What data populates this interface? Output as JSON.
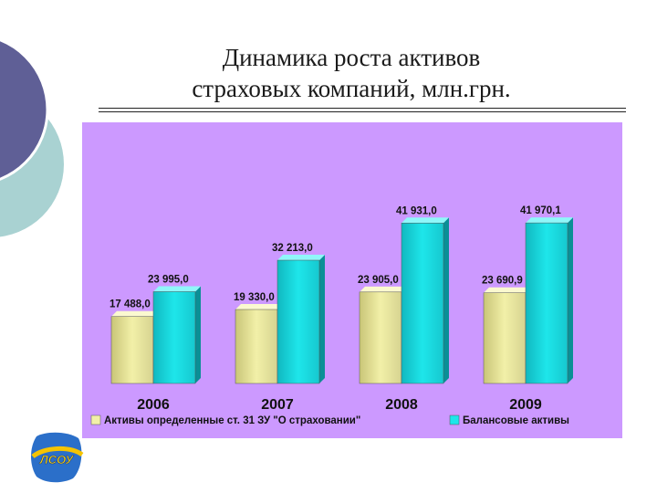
{
  "slide": {
    "title_line1": "Динамика роста активов",
    "title_line2": "страховых компаний, млн.грн."
  },
  "logo": {
    "text": "ЛСОУ"
  },
  "colors": {
    "plot_background": "#cc99ff",
    "series1": "#f2f0a8",
    "series2": "#1ee6ea",
    "deco_dark": "#5f5f96",
    "deco_light": "#a9d2d2"
  },
  "chart_data": {
    "type": "bar",
    "categories": [
      "2006",
      "2007",
      "2008",
      "2009"
    ],
    "series": [
      {
        "name": "Активы определенные ст. 31 ЗУ \"О страховании\"",
        "values": [
          17488.0,
          19330.0,
          23905.0,
          23690.9
        ],
        "labels": [
          "17 488,0",
          "19 330,0",
          "23 905,0",
          "23 690,9"
        ]
      },
      {
        "name": "Балансовые активы",
        "values": [
          23995.0,
          32213.0,
          41931.0,
          41970.1
        ],
        "labels": [
          "23 995,0",
          "32 213,0",
          "41 931,0",
          "41 970,1"
        ]
      }
    ],
    "title": "",
    "xlabel": "",
    "ylabel": "",
    "ylim": [
      0,
      50000
    ],
    "grid": false,
    "legend_position": "bottom",
    "bar_style": "3d"
  }
}
